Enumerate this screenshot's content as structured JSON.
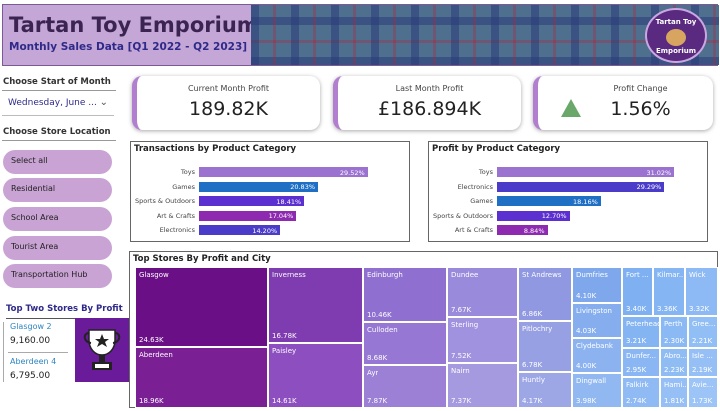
{
  "header": {
    "title": "Tartan Toy Emporium",
    "subtitle": "Monthly Sales Data [Q1 2022 - Q2 2023]",
    "logo_text_top": "Tartan Toy",
    "logo_text_bottom": "Emporium"
  },
  "filters": {
    "month_label": "Choose Start of Month",
    "month_value": "Wednesday, June ...",
    "store_label": "Choose Store Location",
    "store_options": [
      "Select all",
      "Residential",
      "School Area",
      "Tourist Area",
      "Transportation Hub"
    ]
  },
  "kpis": [
    {
      "label": "Current Month Profit",
      "value": "189.82K"
    },
    {
      "label": "Last Month Profit",
      "value": "£186.894K"
    },
    {
      "label": "Profit Change",
      "value": "1.56%"
    }
  ],
  "colors": {
    "accent": "#b27fd0",
    "up_arrow": "#6aa86a",
    "store_name": "#2e86c1"
  },
  "top_two": {
    "title": "Top Two Stores By Profit",
    "stores": [
      {
        "name": "Glasgow 2",
        "value": "9,160.00"
      },
      {
        "name": "Aberdeen 4",
        "value": "6,795.00"
      }
    ]
  },
  "chart_data": [
    {
      "type": "bar",
      "orientation": "horizontal",
      "title": "Transactions by Product Category",
      "categories": [
        "Toys",
        "Games",
        "Sports & Outdoors",
        "Art & Crafts",
        "Electronics"
      ],
      "values": [
        29.52,
        20.83,
        18.41,
        17.04,
        14.2
      ],
      "labels": [
        "29.52%",
        "20.83%",
        "18.41%",
        "17.04%",
        "14.20%"
      ],
      "colors": [
        "#9b72cf",
        "#1f6fc4",
        "#5b2fd0",
        "#8e2ab0",
        "#4a3cc8"
      ],
      "xlim": [
        0,
        35
      ]
    },
    {
      "type": "bar",
      "orientation": "horizontal",
      "title": "Profit by Product Category",
      "categories": [
        "Toys",
        "Electronics",
        "Games",
        "Sports & Outdoors",
        "Art & Crafts"
      ],
      "values": [
        31.02,
        29.29,
        18.16,
        12.7,
        8.84
      ],
      "labels": [
        "31.02%",
        "29.29%",
        "18.16%",
        "12.70%",
        "8.84%"
      ],
      "colors": [
        "#9b72cf",
        "#4a3cc8",
        "#1f6fc4",
        "#5b2fd0",
        "#8e2ab0"
      ],
      "xlim": [
        0,
        35
      ]
    },
    {
      "type": "treemap",
      "title": "Top Stores By Profit and City",
      "cities": [
        {
          "city": "Glasgow",
          "value": "24.63K"
        },
        {
          "city": "Aberdeen",
          "value": "18.96K"
        },
        {
          "city": "Inverness",
          "value": "16.78K"
        },
        {
          "city": "Paisley",
          "value": "14.61K"
        },
        {
          "city": "Edinburgh",
          "value": "10.46K"
        },
        {
          "city": "Culloden",
          "value": "8.68K"
        },
        {
          "city": "Ayr",
          "value": "7.87K"
        },
        {
          "city": "Dundee",
          "value": "7.67K"
        },
        {
          "city": "Sterling",
          "value": "7.52K"
        },
        {
          "city": "Nairn",
          "value": "7.37K"
        },
        {
          "city": "St Andrews",
          "value": "6.86K"
        },
        {
          "city": "Pitlochry",
          "value": "6.78K"
        },
        {
          "city": "Huntly",
          "value": "4.17K"
        },
        {
          "city": "Dumfries",
          "value": "4.10K"
        },
        {
          "city": "Livingston",
          "value": "4.03K"
        },
        {
          "city": "Clydebank",
          "value": "4.00K"
        },
        {
          "city": "Dingwall",
          "value": "3.98K"
        },
        {
          "city": "Fort ...",
          "value": "3.40K"
        },
        {
          "city": "Kilmar...",
          "value": "3.36K"
        },
        {
          "city": "Wick",
          "value": "3.32K"
        },
        {
          "city": "Peterhead",
          "value": "3.21K"
        },
        {
          "city": "Perth",
          "value": "2.30K"
        },
        {
          "city": "Gree...",
          "value": "2.21K"
        },
        {
          "city": "Dunfer...",
          "value": "2.95K"
        },
        {
          "city": "Abro...",
          "value": "2.23K"
        },
        {
          "city": "Isle ...",
          "value": "2.19K"
        },
        {
          "city": "Falkirk",
          "value": "2.74K"
        },
        {
          "city": "Hami...",
          "value": "1.81K"
        },
        {
          "city": "Avie...",
          "value": "1.73K"
        }
      ]
    }
  ]
}
